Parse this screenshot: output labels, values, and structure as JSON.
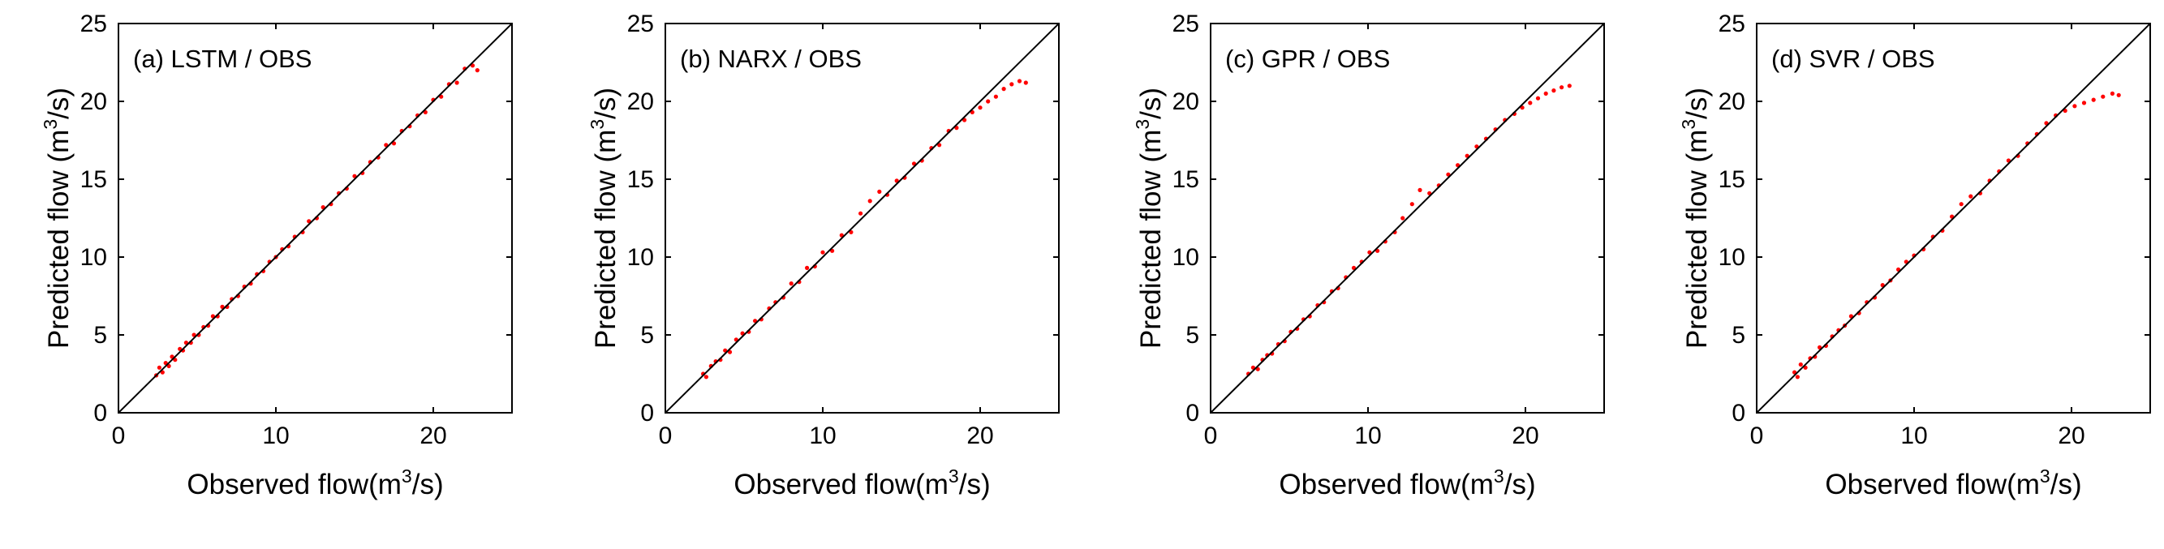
{
  "figure": {
    "point_color": "#ff0000",
    "line_color": "#000000"
  },
  "chart_data": [
    {
      "type": "scatter",
      "title": "(a) LSTM / OBS",
      "xlabel": "Observed flow",
      "ylabel": "Predicted flow",
      "unit_prefix": "(m",
      "unit_exp": "3",
      "unit_suffix": "/s)",
      "xlim": [
        0,
        25
      ],
      "ylim": [
        0,
        25
      ],
      "xticks": [
        0,
        10,
        20
      ],
      "yticks": [
        0,
        5,
        10,
        15,
        20,
        25
      ],
      "reference_line": "y = x",
      "points": [
        [
          2.4,
          2.4
        ],
        [
          2.6,
          2.9
        ],
        [
          2.8,
          2.6
        ],
        [
          3.0,
          3.2
        ],
        [
          3.2,
          3.0
        ],
        [
          3.4,
          3.6
        ],
        [
          3.6,
          3.4
        ],
        [
          3.9,
          4.1
        ],
        [
          4.1,
          4.0
        ],
        [
          4.3,
          4.5
        ],
        [
          4.6,
          4.5
        ],
        [
          4.8,
          5.0
        ],
        [
          5.1,
          5.0
        ],
        [
          5.4,
          5.5
        ],
        [
          5.7,
          5.6
        ],
        [
          6.0,
          6.2
        ],
        [
          6.3,
          6.2
        ],
        [
          6.6,
          6.8
        ],
        [
          6.9,
          6.8
        ],
        [
          7.2,
          7.3
        ],
        [
          7.6,
          7.5
        ],
        [
          8.0,
          8.1
        ],
        [
          8.4,
          8.3
        ],
        [
          8.8,
          8.9
        ],
        [
          9.2,
          9.1
        ],
        [
          9.6,
          9.7
        ],
        [
          10.0,
          10.0
        ],
        [
          10.4,
          10.5
        ],
        [
          10.8,
          10.7
        ],
        [
          11.2,
          11.3
        ],
        [
          11.7,
          11.6
        ],
        [
          12.1,
          12.3
        ],
        [
          12.6,
          12.5
        ],
        [
          13.0,
          13.2
        ],
        [
          13.5,
          13.4
        ],
        [
          14.0,
          14.1
        ],
        [
          14.5,
          14.4
        ],
        [
          15.0,
          15.2
        ],
        [
          15.5,
          15.4
        ],
        [
          16.0,
          16.1
        ],
        [
          16.5,
          16.4
        ],
        [
          17.0,
          17.2
        ],
        [
          17.5,
          17.3
        ],
        [
          18.0,
          18.1
        ],
        [
          18.5,
          18.4
        ],
        [
          19.0,
          19.1
        ],
        [
          19.5,
          19.3
        ],
        [
          20.0,
          20.1
        ],
        [
          20.5,
          20.3
        ],
        [
          21.0,
          21.1
        ],
        [
          21.5,
          21.2
        ],
        [
          22.0,
          22.1
        ],
        [
          22.5,
          22.3
        ],
        [
          22.8,
          22.0
        ]
      ]
    },
    {
      "type": "scatter",
      "title": "(b) NARX / OBS",
      "xlabel": "Observed flow",
      "ylabel": "Predicted flow",
      "unit_prefix": "(m",
      "unit_exp": "3",
      "unit_suffix": "/s)",
      "xlim": [
        0,
        25
      ],
      "ylim": [
        0,
        25
      ],
      "xticks": [
        0,
        10,
        20
      ],
      "yticks": [
        0,
        5,
        10,
        15,
        20,
        25
      ],
      "reference_line": "y = x",
      "points": [
        [
          2.4,
          2.5
        ],
        [
          2.6,
          2.3
        ],
        [
          2.9,
          3.0
        ],
        [
          3.2,
          3.3
        ],
        [
          3.5,
          3.4
        ],
        [
          3.8,
          4.0
        ],
        [
          4.1,
          3.9
        ],
        [
          4.5,
          4.7
        ],
        [
          4.9,
          5.1
        ],
        [
          5.3,
          5.2
        ],
        [
          5.7,
          5.9
        ],
        [
          6.1,
          6.0
        ],
        [
          6.6,
          6.7
        ],
        [
          7.0,
          7.1
        ],
        [
          7.5,
          7.4
        ],
        [
          8.0,
          8.3
        ],
        [
          8.5,
          8.4
        ],
        [
          9.0,
          9.3
        ],
        [
          9.5,
          9.4
        ],
        [
          10.0,
          10.3
        ],
        [
          10.6,
          10.4
        ],
        [
          11.2,
          11.4
        ],
        [
          11.8,
          11.6
        ],
        [
          12.4,
          12.8
        ],
        [
          13.0,
          13.6
        ],
        [
          13.6,
          14.2
        ],
        [
          14.1,
          14.0
        ],
        [
          14.7,
          14.9
        ],
        [
          15.2,
          15.1
        ],
        [
          15.8,
          16.0
        ],
        [
          16.3,
          16.2
        ],
        [
          16.9,
          17.0
        ],
        [
          17.4,
          17.2
        ],
        [
          18.0,
          18.1
        ],
        [
          18.5,
          18.3
        ],
        [
          19.0,
          18.8
        ],
        [
          19.5,
          19.3
        ],
        [
          20.0,
          19.6
        ],
        [
          20.5,
          20.0
        ],
        [
          21.0,
          20.3
        ],
        [
          21.5,
          20.8
        ],
        [
          22.0,
          21.1
        ],
        [
          22.5,
          21.3
        ],
        [
          22.9,
          21.2
        ]
      ]
    },
    {
      "type": "scatter",
      "title": "(c) GPR / OBS",
      "xlabel": "Observed flow",
      "ylabel": "Predicted flow",
      "unit_prefix": "(m",
      "unit_exp": "3",
      "unit_suffix": "/s)",
      "xlim": [
        0,
        25
      ],
      "ylim": [
        0,
        25
      ],
      "xticks": [
        0,
        10,
        20
      ],
      "yticks": [
        0,
        5,
        10,
        15,
        20,
        25
      ],
      "reference_line": "y = x",
      "points": [
        [
          2.4,
          2.5
        ],
        [
          2.7,
          2.9
        ],
        [
          3.0,
          2.8
        ],
        [
          3.3,
          3.4
        ],
        [
          3.6,
          3.7
        ],
        [
          3.9,
          3.8
        ],
        [
          4.3,
          4.4
        ],
        [
          4.7,
          4.6
        ],
        [
          5.1,
          5.2
        ],
        [
          5.5,
          5.4
        ],
        [
          5.9,
          6.0
        ],
        [
          6.3,
          6.2
        ],
        [
          6.8,
          6.9
        ],
        [
          7.2,
          7.1
        ],
        [
          7.7,
          7.8
        ],
        [
          8.1,
          8.0
        ],
        [
          8.6,
          8.7
        ],
        [
          9.1,
          9.3
        ],
        [
          9.6,
          9.7
        ],
        [
          10.1,
          10.3
        ],
        [
          10.6,
          10.4
        ],
        [
          11.1,
          11.0
        ],
        [
          11.7,
          11.6
        ],
        [
          12.2,
          12.5
        ],
        [
          12.8,
          13.4
        ],
        [
          13.3,
          14.3
        ],
        [
          13.9,
          14.1
        ],
        [
          14.5,
          14.6
        ],
        [
          15.1,
          15.3
        ],
        [
          15.7,
          15.9
        ],
        [
          16.3,
          16.5
        ],
        [
          16.9,
          17.1
        ],
        [
          17.5,
          17.6
        ],
        [
          18.1,
          18.2
        ],
        [
          18.7,
          18.8
        ],
        [
          19.3,
          19.2
        ],
        [
          19.8,
          19.6
        ],
        [
          20.3,
          19.9
        ],
        [
          20.8,
          20.2
        ],
        [
          21.3,
          20.5
        ],
        [
          21.8,
          20.7
        ],
        [
          22.3,
          20.9
        ],
        [
          22.8,
          21.0
        ]
      ]
    },
    {
      "type": "scatter",
      "title": "(d) SVR / OBS",
      "xlabel": "Observed flow",
      "ylabel": "Predicted flow",
      "unit_prefix": "(m",
      "unit_exp": "3",
      "unit_suffix": "/s)",
      "xlim": [
        0,
        25
      ],
      "ylim": [
        0,
        25
      ],
      "xticks": [
        0,
        10,
        20
      ],
      "yticks": [
        0,
        5,
        10,
        15,
        20,
        25
      ],
      "reference_line": "y = x",
      "points": [
        [
          2.4,
          2.6
        ],
        [
          2.6,
          2.3
        ],
        [
          2.8,
          3.1
        ],
        [
          3.1,
          2.9
        ],
        [
          3.4,
          3.5
        ],
        [
          3.7,
          3.6
        ],
        [
          4.0,
          4.2
        ],
        [
          4.4,
          4.3
        ],
        [
          4.8,
          4.9
        ],
        [
          5.2,
          5.3
        ],
        [
          5.6,
          5.6
        ],
        [
          6.0,
          6.2
        ],
        [
          6.5,
          6.4
        ],
        [
          7.0,
          7.1
        ],
        [
          7.5,
          7.4
        ],
        [
          8.0,
          8.2
        ],
        [
          8.5,
          8.5
        ],
        [
          9.0,
          9.2
        ],
        [
          9.5,
          9.7
        ],
        [
          10.0,
          10.1
        ],
        [
          10.6,
          10.5
        ],
        [
          11.2,
          11.3
        ],
        [
          11.8,
          11.7
        ],
        [
          12.4,
          12.6
        ],
        [
          13.0,
          13.4
        ],
        [
          13.6,
          13.9
        ],
        [
          14.2,
          14.1
        ],
        [
          14.8,
          14.9
        ],
        [
          15.4,
          15.5
        ],
        [
          16.0,
          16.2
        ],
        [
          16.6,
          16.5
        ],
        [
          17.2,
          17.3
        ],
        [
          17.8,
          17.9
        ],
        [
          18.4,
          18.6
        ],
        [
          19.0,
          19.1
        ],
        [
          19.6,
          19.4
        ],
        [
          20.2,
          19.7
        ],
        [
          20.8,
          19.9
        ],
        [
          21.4,
          20.1
        ],
        [
          22.0,
          20.3
        ],
        [
          22.6,
          20.5
        ],
        [
          23.0,
          20.4
        ]
      ]
    }
  ]
}
